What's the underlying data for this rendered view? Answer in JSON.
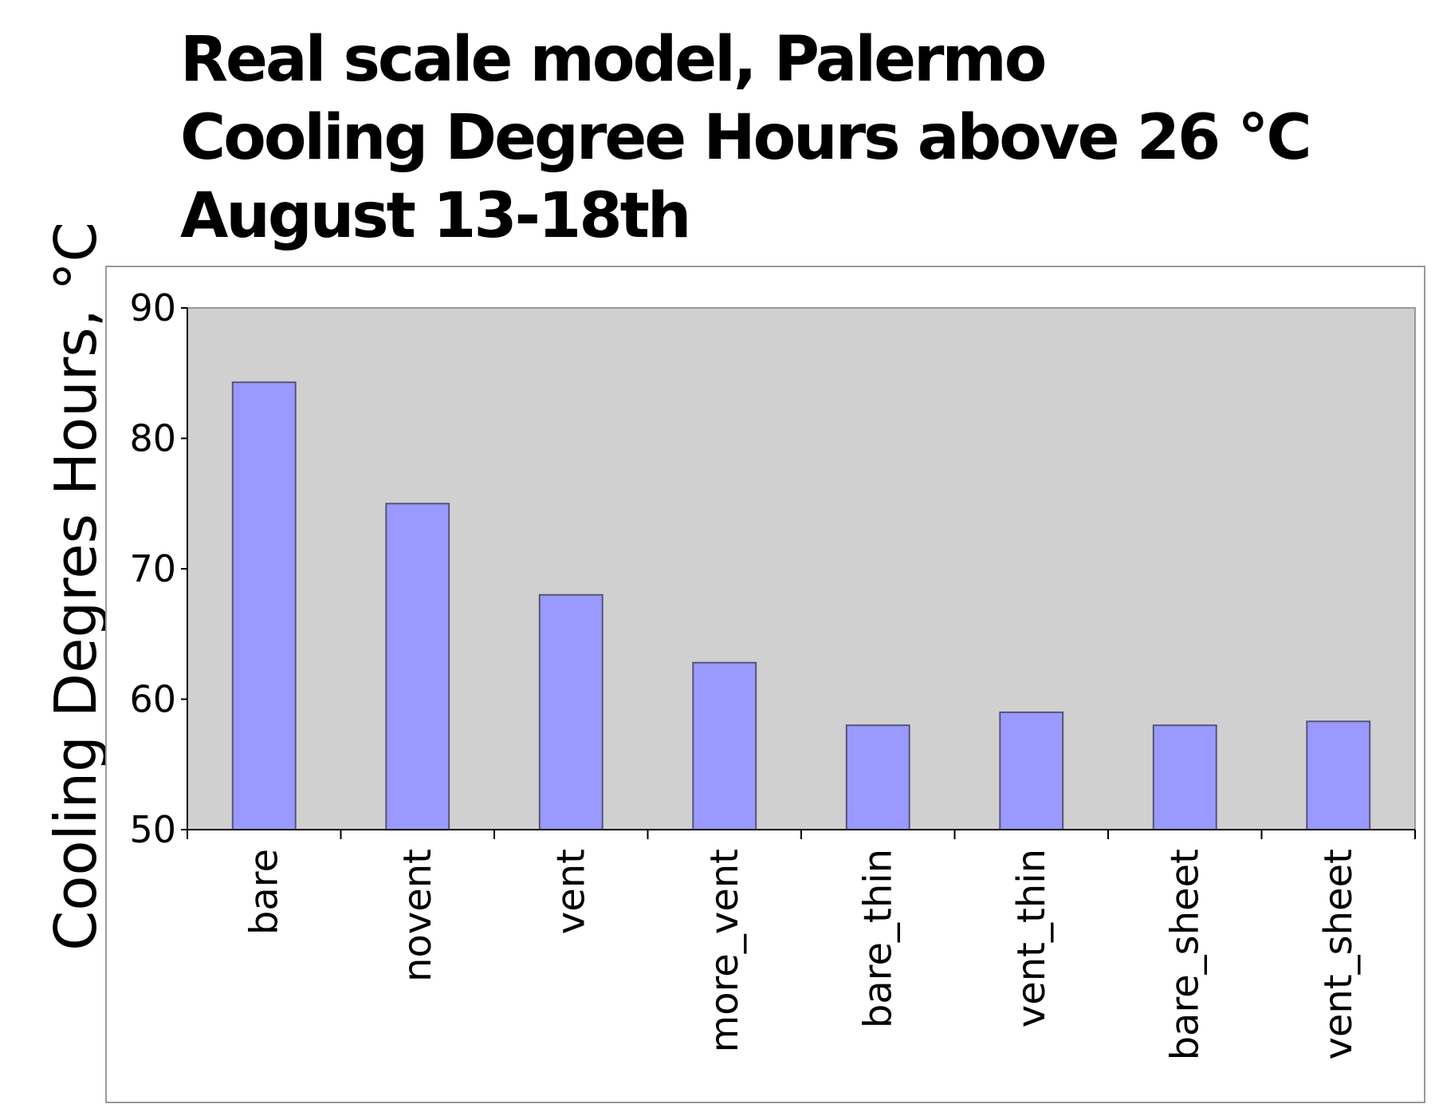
{
  "chart_data": {
    "type": "bar",
    "title_lines": [
      "Real scale model, Palermo",
      "Cooling Degree Hours above 26 °C",
      "August 13-18th"
    ],
    "xlabel": "",
    "ylabel": "Cooling Degres Hours, °C",
    "categories": [
      "bare",
      "novent",
      "vent",
      "more_vent",
      "bare_thin",
      "vent_thin",
      "bare_sheet",
      "vent_sheet"
    ],
    "values": [
      84.3,
      75.0,
      68.0,
      62.8,
      58.0,
      59.0,
      58.0,
      58.3
    ],
    "ylim": [
      50,
      90
    ],
    "yticks": [
      50,
      60,
      70,
      80,
      90
    ],
    "grid": false,
    "legend": "none",
    "colors": {
      "bar_fill": "#9999ff",
      "bar_stroke": "#555577",
      "plot_background": "#d0d0d0",
      "frame": "#999999"
    }
  }
}
